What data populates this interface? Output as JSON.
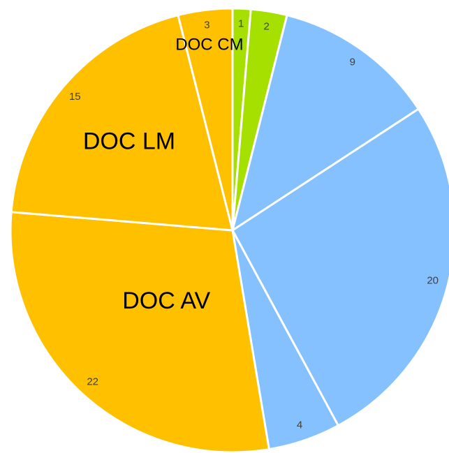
{
  "chart_data": {
    "type": "pie",
    "categories": [
      null,
      null,
      null,
      null,
      null,
      "DOC AV",
      "DOC LM",
      "DOC CM"
    ],
    "values": [
      1,
      2,
      9,
      20,
      4,
      22,
      15,
      3
    ],
    "colors": [
      "#a6e000",
      "#a6e000",
      "#85c1ff",
      "#85c1ff",
      "#85c1ff",
      "#ffc000",
      "#ffc000",
      "#ffc000"
    ]
  }
}
